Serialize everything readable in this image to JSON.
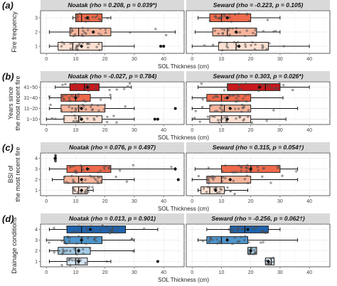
{
  "figure": {
    "panels": [
      {
        "tag": "(a)",
        "ylabel": [
          "Fire frequency"
        ],
        "xlabel": "SOL Thickness (cm)",
        "categories": [
          "1",
          "2",
          "3"
        ],
        "facets": [
          {
            "title": "Noatak (rho = 0.208, p = 0.039*)",
            "boxes": [
              {
                "category": "1",
                "min": 1,
                "q1": 4,
                "median": 9,
                "q3": 19,
                "max": 30,
                "mean": 12,
                "outliers": [
                  39,
                  40
                ]
              },
              {
                "category": "2",
                "min": 1,
                "q1": 8,
                "median": 11,
                "q3": 22,
                "max": 44,
                "mean": 16,
                "outliers": []
              },
              {
                "category": "3",
                "min": 9,
                "q1": 10,
                "median": 12,
                "q3": 19,
                "max": 22,
                "mean": 14,
                "outliers": []
              }
            ]
          },
          {
            "title": "Seward (rho = -0.223, p = 0.105)",
            "boxes": [
              {
                "category": "1",
                "min": 0,
                "q1": 9,
                "median": 15,
                "q3": 26,
                "max": 40,
                "mean": 16,
                "outliers": []
              },
              {
                "category": "2",
                "min": 1,
                "q1": 7,
                "median": 12,
                "q3": 22,
                "max": 30,
                "mean": 15,
                "outliers": []
              },
              {
                "category": "3",
                "min": 2,
                "q1": 6,
                "median": 10,
                "q3": 20,
                "max": 30,
                "mean": 12,
                "outliers": []
              }
            ]
          }
        ]
      },
      {
        "tag": "(b)",
        "ylabel": [
          "Years since",
          "the most recent fire"
        ],
        "xlabel": "SOL Thickness (cm)",
        "categories": [
          "1~10",
          "11~20",
          "31~40",
          "41~50"
        ],
        "facets": [
          {
            "title": "Noatak (rho = -0.027, p = 0.784)",
            "boxes": [
              {
                "category": "1~10",
                "min": 0,
                "q1": 6,
                "median": 11,
                "q3": 19,
                "max": 30,
                "mean": 12,
                "outliers": [
                  37,
                  38
                ]
              },
              {
                "category": "11~20",
                "min": 1,
                "q1": 5,
                "median": 11,
                "q3": 20,
                "max": 30,
                "mean": 12,
                "outliers": [
                  44
                ]
              },
              {
                "category": "31~40",
                "min": 1,
                "q1": 5,
                "median": 10,
                "q3": 15,
                "max": 22,
                "mean": 10,
                "outliers": []
              },
              {
                "category": "41~50",
                "min": 3,
                "q1": 8,
                "median": 13,
                "q3": 18,
                "max": 29,
                "mean": 14,
                "outliers": []
              }
            ]
          },
          {
            "title": "Seward (rho = 0.303, p = 0.026*)",
            "boxes": [
              {
                "category": "1~10",
                "min": 0,
                "q1": 6,
                "median": 10,
                "q3": 20,
                "max": 32,
                "mean": 12,
                "outliers": []
              },
              {
                "category": "11~20",
                "min": 0,
                "q1": 6,
                "median": 11,
                "q3": 20,
                "max": 36,
                "mean": 13,
                "outliers": []
              },
              {
                "category": "31~40",
                "min": 0,
                "q1": 5,
                "median": 10,
                "q3": 20,
                "max": 31,
                "mean": 12,
                "outliers": []
              },
              {
                "category": "41~50",
                "min": 2,
                "q1": 12,
                "median": 25,
                "q3": 30,
                "max": 40,
                "mean": 23,
                "outliers": []
              }
            ]
          }
        ]
      },
      {
        "tag": "(c)",
        "ylabel": [
          "BSI of",
          "the most recent fire"
        ],
        "xlabel": "SOL Thickness (cm)",
        "categories": [
          "1",
          "2",
          "3",
          "4"
        ],
        "facets": [
          {
            "title": "Noatak (rho = 0.076, p = 0.497)",
            "boxes": [
              {
                "category": "1",
                "min": 9,
                "q1": 9,
                "median": 11,
                "q3": 14,
                "max": 16,
                "mean": 12,
                "outliers": []
              },
              {
                "category": "2",
                "min": 2,
                "q1": 6,
                "median": 11,
                "q3": 19,
                "max": 30,
                "mean": 12,
                "outliers": [
                  45
                ]
              },
              {
                "category": "3",
                "min": 1,
                "q1": 7,
                "median": 12,
                "q3": 22,
                "max": 44,
                "mean": 14,
                "outliers": [
                  44
                ]
              },
              {
                "category": "4",
                "min": 3,
                "q1": 3,
                "median": 3,
                "q3": 3,
                "max": 3,
                "mean": 3,
                "outliers": []
              }
            ]
          },
          {
            "title": "Seward (rho = 0.315, p = 0.054†)",
            "boxes": [
              {
                "category": "1",
                "min": 2,
                "q1": 3,
                "median": 6,
                "q3": 11,
                "max": 19,
                "mean": 8,
                "outliers": []
              },
              {
                "category": "2",
                "min": 0,
                "q1": 5,
                "median": 10,
                "q3": 20,
                "max": 36,
                "mean": 13,
                "outliers": []
              },
              {
                "category": "3",
                "min": 1,
                "q1": 10,
                "median": 20,
                "q3": 30,
                "max": 36,
                "mean": 20,
                "outliers": []
              }
            ]
          }
        ]
      },
      {
        "tag": "(d)",
        "ylabel": [
          "Drainage conditions"
        ],
        "xlabel": "SOL Thickness (cm)",
        "categories": [
          "1",
          "2",
          "3",
          "4"
        ],
        "facets": [
          {
            "title": "Noatak (rho = 0.013, p = 0.901)",
            "boxes": [
              {
                "category": "1",
                "min": 1,
                "q1": 7,
                "median": 10,
                "q3": 14,
                "max": 22,
                "mean": 11,
                "outliers": [
                  38
                ]
              },
              {
                "category": "2",
                "min": 1,
                "q1": 4,
                "median": 10,
                "q3": 15,
                "max": 30,
                "mean": 11,
                "outliers": []
              },
              {
                "category": "3",
                "min": 0,
                "q1": 6,
                "median": 12,
                "q3": 19,
                "max": 30,
                "mean": 12,
                "outliers": []
              },
              {
                "category": "4",
                "min": 1,
                "q1": 7,
                "median": 12,
                "q3": 27,
                "max": 38,
                "mean": 15,
                "outliers": []
              }
            ]
          },
          {
            "title": "Seward (rho = -0.256, p = 0.062†)",
            "boxes": [
              {
                "category": "1",
                "min": 25,
                "q1": 25,
                "median": 27,
                "q3": 28,
                "max": 28,
                "mean": 26,
                "outliers": []
              },
              {
                "category": "2",
                "min": 19,
                "q1": 19,
                "median": 20,
                "q3": 22,
                "max": 22,
                "mean": 20,
                "outliers": []
              },
              {
                "category": "3",
                "min": 2,
                "q1": 5,
                "median": 10,
                "q3": 19,
                "max": 36,
                "mean": 12,
                "outliers": []
              },
              {
                "category": "4",
                "min": 5,
                "q1": 13,
                "median": 18,
                "q3": 26,
                "max": 30,
                "mean": 19,
                "outliers": []
              }
            ]
          }
        ]
      }
    ]
  },
  "chart_data": [
    {
      "type": "boxplot",
      "title": "Noatak (rho = 0.208, p = 0.039*)",
      "xlabel": "SOL Thickness (cm)",
      "ylabel": "Fire frequency",
      "xlim": [
        -2,
        47
      ],
      "categories": [
        "1",
        "2",
        "3"
      ],
      "median": [
        9,
        11,
        12
      ],
      "q1": [
        4,
        8,
        10
      ],
      "q3": [
        19,
        22,
        19
      ],
      "min": [
        1,
        1,
        9
      ],
      "max": [
        30,
        44,
        22
      ],
      "mean": [
        12,
        16,
        14
      ]
    },
    {
      "type": "boxplot",
      "title": "Seward (rho = -0.223, p = 0.105)",
      "xlabel": "SOL Thickness (cm)",
      "ylabel": "Fire frequency",
      "xlim": [
        -2,
        47
      ],
      "categories": [
        "1",
        "2",
        "3"
      ],
      "median": [
        15,
        12,
        10
      ],
      "q1": [
        9,
        7,
        6
      ],
      "q3": [
        26,
        22,
        20
      ],
      "min": [
        0,
        1,
        2
      ],
      "max": [
        40,
        30,
        30
      ],
      "mean": [
        16,
        15,
        12
      ]
    },
    {
      "type": "boxplot",
      "title": "Noatak (rho = -0.027, p = 0.784)",
      "xlabel": "SOL Thickness (cm)",
      "ylabel": "Years since the most recent fire",
      "xlim": [
        -2,
        47
      ],
      "categories": [
        "1~10",
        "11~20",
        "31~40",
        "41~50"
      ],
      "median": [
        11,
        11,
        10,
        13
      ],
      "q1": [
        6,
        5,
        5,
        8
      ],
      "q3": [
        19,
        20,
        15,
        18
      ],
      "min": [
        0,
        1,
        1,
        3
      ],
      "max": [
        30,
        30,
        22,
        29
      ],
      "mean": [
        12,
        12,
        10,
        14
      ]
    },
    {
      "type": "boxplot",
      "title": "Seward (rho = 0.303, p = 0.026*)",
      "xlabel": "SOL Thickness (cm)",
      "ylabel": "Years since the most recent fire",
      "xlim": [
        -2,
        47
      ],
      "categories": [
        "1~10",
        "11~20",
        "31~40",
        "41~50"
      ],
      "median": [
        10,
        11,
        10,
        25
      ],
      "q1": [
        6,
        6,
        5,
        12
      ],
      "q3": [
        20,
        20,
        20,
        30
      ],
      "min": [
        0,
        0,
        0,
        2
      ],
      "max": [
        32,
        36,
        31,
        40
      ],
      "mean": [
        12,
        13,
        12,
        23
      ]
    },
    {
      "type": "boxplot",
      "title": "Noatak (rho = 0.076, p = 0.497)",
      "xlabel": "SOL Thickness (cm)",
      "ylabel": "BSI of the most recent fire",
      "xlim": [
        -2,
        47
      ],
      "categories": [
        "1",
        "2",
        "3",
        "4"
      ],
      "median": [
        11,
        11,
        12,
        3
      ],
      "q1": [
        9,
        6,
        7,
        3
      ],
      "q3": [
        14,
        19,
        22,
        3
      ],
      "min": [
        9,
        2,
        1,
        3
      ],
      "max": [
        16,
        30,
        44,
        3
      ],
      "mean": [
        12,
        12,
        14,
        3
      ]
    },
    {
      "type": "boxplot",
      "title": "Seward (rho = 0.315, p = 0.054†)",
      "xlabel": "SOL Thickness (cm)",
      "ylabel": "BSI of the most recent fire",
      "xlim": [
        -2,
        47
      ],
      "categories": [
        "1",
        "2",
        "3"
      ],
      "median": [
        6,
        10,
        20
      ],
      "q1": [
        3,
        5,
        10
      ],
      "q3": [
        11,
        20,
        30
      ],
      "min": [
        2,
        0,
        1
      ],
      "max": [
        19,
        36,
        36
      ],
      "mean": [
        8,
        13,
        20
      ]
    },
    {
      "type": "boxplot",
      "title": "Noatak (rho = 0.013, p = 0.901)",
      "xlabel": "SOL Thickness (cm)",
      "ylabel": "Drainage conditions",
      "xlim": [
        -2,
        47
      ],
      "categories": [
        "1",
        "2",
        "3",
        "4"
      ],
      "median": [
        10,
        10,
        12,
        12
      ],
      "q1": [
        7,
        4,
        6,
        7
      ],
      "q3": [
        14,
        15,
        19,
        27
      ],
      "min": [
        1,
        1,
        0,
        1
      ],
      "max": [
        22,
        30,
        30,
        38
      ],
      "mean": [
        11,
        11,
        12,
        15
      ]
    },
    {
      "type": "boxplot",
      "title": "Seward (rho = -0.256, p = 0.062†)",
      "xlabel": "SOL Thickness (cm)",
      "ylabel": "Drainage conditions",
      "xlim": [
        -2,
        47
      ],
      "categories": [
        "1",
        "2",
        "3",
        "4"
      ],
      "median": [
        27,
        20,
        10,
        18
      ],
      "q1": [
        25,
        19,
        5,
        13
      ],
      "q3": [
        28,
        22,
        19,
        26
      ],
      "min": [
        25,
        19,
        2,
        5
      ],
      "max": [
        28,
        22,
        36,
        30
      ],
      "mean": [
        26,
        20,
        12,
        19
      ]
    }
  ],
  "x_ticks": [
    0,
    10,
    20,
    30,
    40
  ],
  "colors": {
    "strip": "#d9d9d9",
    "grid": "#ebebeb",
    "reds": [
      "#fde0d2",
      "#f8b49b",
      "#ef6a4c",
      "#c81a1d"
    ],
    "blues": [
      "#d5e5f3",
      "#a4cbe4",
      "#4f96cc",
      "#1f63ad"
    ]
  }
}
